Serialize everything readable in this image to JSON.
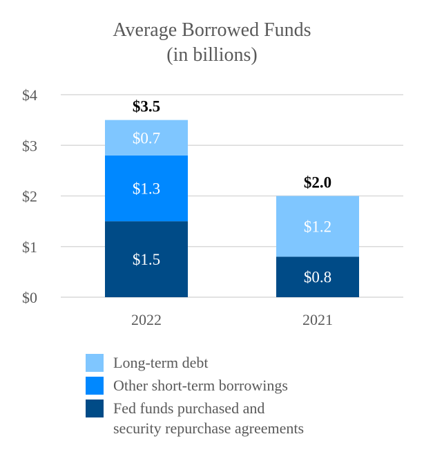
{
  "chart_data": {
    "type": "bar",
    "stacked": true,
    "title_lines": [
      "Average Borrowed Funds",
      "(in billions)"
    ],
    "xlabel": "",
    "ylabel": "",
    "ylim": [
      0,
      4
    ],
    "y_ticks": [
      0,
      1,
      2,
      3,
      4
    ],
    "y_tick_labels": [
      "$0",
      "$1",
      "$2",
      "$3",
      "$4"
    ],
    "grid": true,
    "legend_position": "bottom",
    "categories": [
      "2022",
      "2021"
    ],
    "totals": [
      3.5,
      2.0
    ],
    "total_labels": [
      "$3.5",
      "$2.0"
    ],
    "series": [
      {
        "name": "Fed funds purchased and security repurchase agreements",
        "name_lines": [
          "Fed funds purchased and",
          "security repurchase agreements"
        ],
        "values": [
          1.5,
          0.8
        ],
        "labels": [
          "$1.5",
          "$0.8"
        ],
        "color": "#004B87"
      },
      {
        "name": "Other short-term borrowings",
        "name_lines": [
          "Other short-term borrowings"
        ],
        "values": [
          1.3,
          0
        ],
        "labels": [
          "$1.3",
          ""
        ],
        "color": "#0088FF"
      },
      {
        "name": "Long-term debt",
        "name_lines": [
          "Long-term debt"
        ],
        "values": [
          0.7,
          1.2
        ],
        "labels": [
          "$0.7",
          "$1.2"
        ],
        "color": "#7FC6FF"
      }
    ],
    "legend_order": [
      2,
      1,
      0
    ]
  }
}
